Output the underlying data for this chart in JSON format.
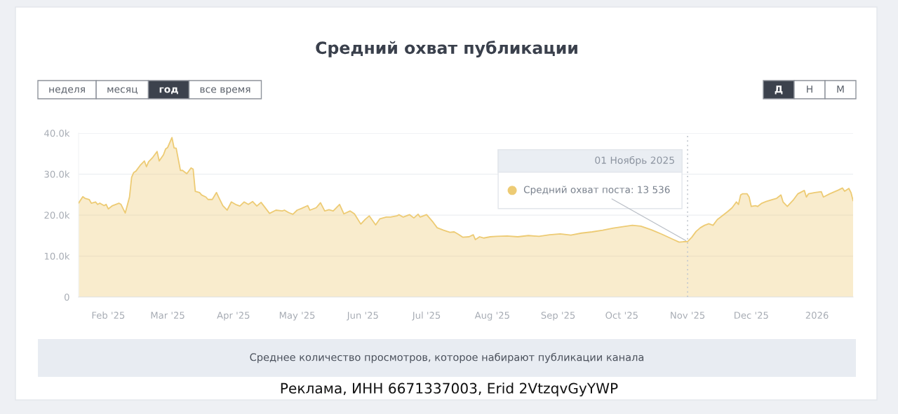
{
  "chart_data": {
    "type": "area",
    "title": "Средний охват публикации",
    "x": [
      "2025-01-18",
      "2025-01-20",
      "2025-01-21",
      "2025-01-23",
      "2025-01-24",
      "2025-01-26",
      "2025-01-27",
      "2025-01-28",
      "2025-01-30",
      "2025-01-31",
      "2025-02-01",
      "2025-02-03",
      "2025-02-06",
      "2025-02-07",
      "2025-02-09",
      "2025-02-11",
      "2025-02-12",
      "2025-02-13",
      "2025-02-14",
      "2025-02-16",
      "2025-02-18",
      "2025-02-19",
      "2025-02-20",
      "2025-02-22",
      "2025-02-24",
      "2025-02-25",
      "2025-02-27",
      "2025-02-28",
      "2025-03-01",
      "2025-03-03",
      "2025-03-04",
      "2025-03-05",
      "2025-03-07",
      "2025-03-08",
      "2025-03-10",
      "2025-03-12",
      "2025-03-13",
      "2025-03-14",
      "2025-03-16",
      "2025-03-17",
      "2025-03-19",
      "2025-03-20",
      "2025-03-22",
      "2025-03-24",
      "2025-03-25",
      "2025-03-27",
      "2025-03-29",
      "2025-03-31",
      "2025-04-02",
      "2025-04-04",
      "2025-04-06",
      "2025-04-08",
      "2025-04-10",
      "2025-04-12",
      "2025-04-14",
      "2025-04-18",
      "2025-04-21",
      "2025-04-24",
      "2025-04-25",
      "2025-04-27",
      "2025-04-29",
      "2025-05-01",
      "2025-05-03",
      "2025-05-06",
      "2025-05-07",
      "2025-05-10",
      "2025-05-12",
      "2025-05-14",
      "2025-05-16",
      "2025-05-18",
      "2025-05-21",
      "2025-05-23",
      "2025-05-26",
      "2025-05-28",
      "2025-05-31",
      "2025-06-02",
      "2025-06-04",
      "2025-06-07",
      "2025-06-09",
      "2025-06-12",
      "2025-06-14",
      "2025-06-17",
      "2025-06-18",
      "2025-06-20",
      "2025-06-23",
      "2025-06-25",
      "2025-06-27",
      "2025-06-28",
      "2025-07-01",
      "2025-07-04",
      "2025-07-06",
      "2025-07-09",
      "2025-07-12",
      "2025-07-14",
      "2025-07-16",
      "2025-07-18",
      "2025-07-21",
      "2025-07-23",
      "2025-07-24",
      "2025-07-26",
      "2025-07-28",
      "2025-07-31",
      "2025-08-03",
      "2025-08-08",
      "2025-08-13",
      "2025-08-18",
      "2025-08-23",
      "2025-08-28",
      "2025-09-02",
      "2025-09-07",
      "2025-09-12",
      "2025-09-17",
      "2025-09-22",
      "2025-09-27",
      "2025-10-02",
      "2025-10-06",
      "2025-10-10",
      "2025-10-15",
      "2025-10-20",
      "2025-10-25",
      "2025-10-28",
      "2025-10-30",
      "2025-11-01",
      "2025-11-03",
      "2025-11-05",
      "2025-11-07",
      "2025-11-09",
      "2025-11-11",
      "2025-11-13",
      "2025-11-15",
      "2025-11-18",
      "2025-11-20",
      "2025-11-22",
      "2025-11-24",
      "2025-11-25",
      "2025-11-26",
      "2025-11-27",
      "2025-11-29",
      "2025-11-30",
      "2025-12-01",
      "2025-12-03",
      "2025-12-04",
      "2025-12-06",
      "2025-12-08",
      "2025-12-11",
      "2025-12-13",
      "2025-12-15",
      "2025-12-16",
      "2025-12-18",
      "2025-12-21",
      "2025-12-23",
      "2025-12-26",
      "2025-12-27",
      "2025-12-28",
      "2025-12-31",
      "2026-01-03",
      "2026-01-04",
      "2026-01-07",
      "2026-01-11",
      "2026-01-13",
      "2026-01-14",
      "2026-01-16",
      "2026-01-17",
      "2026-01-18"
    ],
    "series": [
      {
        "color": "#edcb74",
        "values": [
          22900,
          24500,
          24100,
          23800,
          22900,
          23200,
          22600,
          22900,
          22300,
          22600,
          21500,
          22300,
          22900,
          22600,
          20500,
          24400,
          29200,
          30400,
          30700,
          32100,
          33200,
          31800,
          33000,
          34100,
          35500,
          33200,
          34700,
          36100,
          36500,
          38900,
          36400,
          36300,
          30900,
          30900,
          30100,
          31500,
          31200,
          25800,
          25500,
          24900,
          24400,
          23800,
          23800,
          25500,
          24400,
          22300,
          21200,
          23200,
          22600,
          22200,
          23200,
          22600,
          23300,
          22200,
          23100,
          20400,
          21200,
          21000,
          21200,
          20600,
          20200,
          21200,
          21600,
          22300,
          21200,
          21800,
          23000,
          21000,
          21300,
          21000,
          22600,
          20300,
          21000,
          20300,
          17800,
          18900,
          19800,
          17600,
          19100,
          19500,
          19500,
          19800,
          20100,
          19500,
          20100,
          19300,
          20200,
          19500,
          20100,
          18300,
          16900,
          16300,
          15800,
          15900,
          15300,
          14600,
          14700,
          15200,
          14000,
          14700,
          14400,
          14700,
          14800,
          14900,
          14700,
          15000,
          14800,
          15200,
          15400,
          15100,
          15600,
          15900,
          16300,
          16800,
          17200,
          17500,
          17300,
          16400,
          15300,
          14100,
          13400,
          13500,
          13536,
          14600,
          16000,
          16900,
          17500,
          17900,
          17500,
          18900,
          20100,
          20900,
          21800,
          23200,
          22600,
          24900,
          25200,
          25200,
          24400,
          22100,
          22300,
          22100,
          22900,
          23300,
          23800,
          24100,
          24900,
          23200,
          22100,
          23800,
          25200,
          26000,
          24400,
          25200,
          25500,
          25700,
          24400,
          25200,
          26100,
          26600,
          25800,
          26500,
          25500,
          23500
        ]
      }
    ],
    "xlim": [
      "2025-01-18",
      "2026-01-18"
    ],
    "xticks": [
      {
        "value": "2025-02-01",
        "label": "Feb '25"
      },
      {
        "value": "2025-03-01",
        "label": "Mar '25"
      },
      {
        "value": "2025-04-01",
        "label": "Apr '25"
      },
      {
        "value": "2025-05-01",
        "label": "May '25"
      },
      {
        "value": "2025-06-01",
        "label": "Jun '25"
      },
      {
        "value": "2025-07-01",
        "label": "Jul '25"
      },
      {
        "value": "2025-08-01",
        "label": "Aug '25"
      },
      {
        "value": "2025-09-01",
        "label": "Sep '25"
      },
      {
        "value": "2025-10-01",
        "label": "Oct '25"
      },
      {
        "value": "2025-11-01",
        "label": "Nov '25"
      },
      {
        "value": "2025-12-01",
        "label": "Dec '25"
      },
      {
        "value": "2026-01-01",
        "label": "2026"
      }
    ],
    "ylim": [
      0,
      40000
    ],
    "yticks": [
      0,
      {
        "value": 10000,
        "label": "10.0k"
      },
      {
        "value": 20000,
        "label": "20.0k"
      },
      {
        "value": 30000,
        "label": "30.0k"
      },
      {
        "value": 40000,
        "label": "40.0k"
      }
    ],
    "grid": "y",
    "ref_lines": [
      {
        "axis": "x",
        "value": "2025-11-01",
        "label": "01 Ноябрь 2025",
        "color": "#c3c8cf",
        "line_style": "dotted"
      }
    ],
    "annotations": [
      "неделя",
      "месяц",
      "год",
      "все время",
      "Д",
      "Н",
      "М",
      {
        "text": "Средний охват поста: 13 536",
        "x": "2025-11-01",
        "y": 13536
      },
      "Среднее количество просмотров, которое набирают публикации канала",
      "Реклама, ИНН 6671337003, Erid 2VtzqvGyYWP"
    ]
  }
}
